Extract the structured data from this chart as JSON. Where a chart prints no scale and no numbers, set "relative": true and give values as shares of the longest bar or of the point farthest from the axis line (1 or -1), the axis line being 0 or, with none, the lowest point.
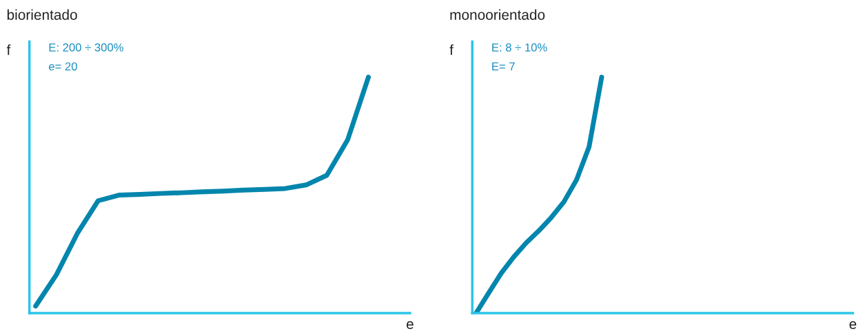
{
  "chart_data": [
    {
      "type": "line",
      "title": "biorientado",
      "xlabel": "e",
      "ylabel": "f",
      "relative": true,
      "annotations": [
        "E: 200 ÷ 300%",
        "e= 20"
      ],
      "categories": [
        null,
        null,
        null,
        null,
        null,
        null,
        null,
        null,
        null,
        null,
        null,
        null,
        null,
        null,
        null,
        null,
        null,
        null,
        null
      ],
      "series": [
        {
          "color": "#0386ad",
          "values": [
            0.03,
            0.163,
            0.337,
            0.476,
            0.5,
            0.503,
            0.507,
            0.51,
            0.514,
            0.517,
            0.521,
            0.524,
            0.528,
            0.543,
            0.584,
            0.734,
            1,
            null,
            null
          ]
        }
      ]
    },
    {
      "type": "line",
      "title": "monoorientado",
      "xlabel": "e",
      "ylabel": "f",
      "relative": true,
      "annotations": [
        "E: 8 ÷ 10%",
        "E= 7"
      ],
      "categories": [
        null,
        null,
        null,
        null,
        null,
        null,
        null,
        null,
        null,
        null,
        null,
        null,
        null,
        null,
        null,
        null,
        null,
        null,
        null,
        null,
        null,
        null,
        null,
        null,
        null,
        null,
        null,
        null,
        null,
        null,
        null
      ],
      "series": [
        {
          "color": "#0386ad",
          "values": [
            0,
            0.085,
            0.169,
            0.238,
            0.298,
            0.349,
            0.406,
            0.472,
            0.565,
            0.705,
            1,
            null,
            null,
            null,
            null,
            null,
            null,
            null,
            null,
            null,
            null,
            null,
            null,
            null,
            null,
            null,
            null,
            null,
            null,
            null,
            null
          ]
        }
      ]
    }
  ]
}
